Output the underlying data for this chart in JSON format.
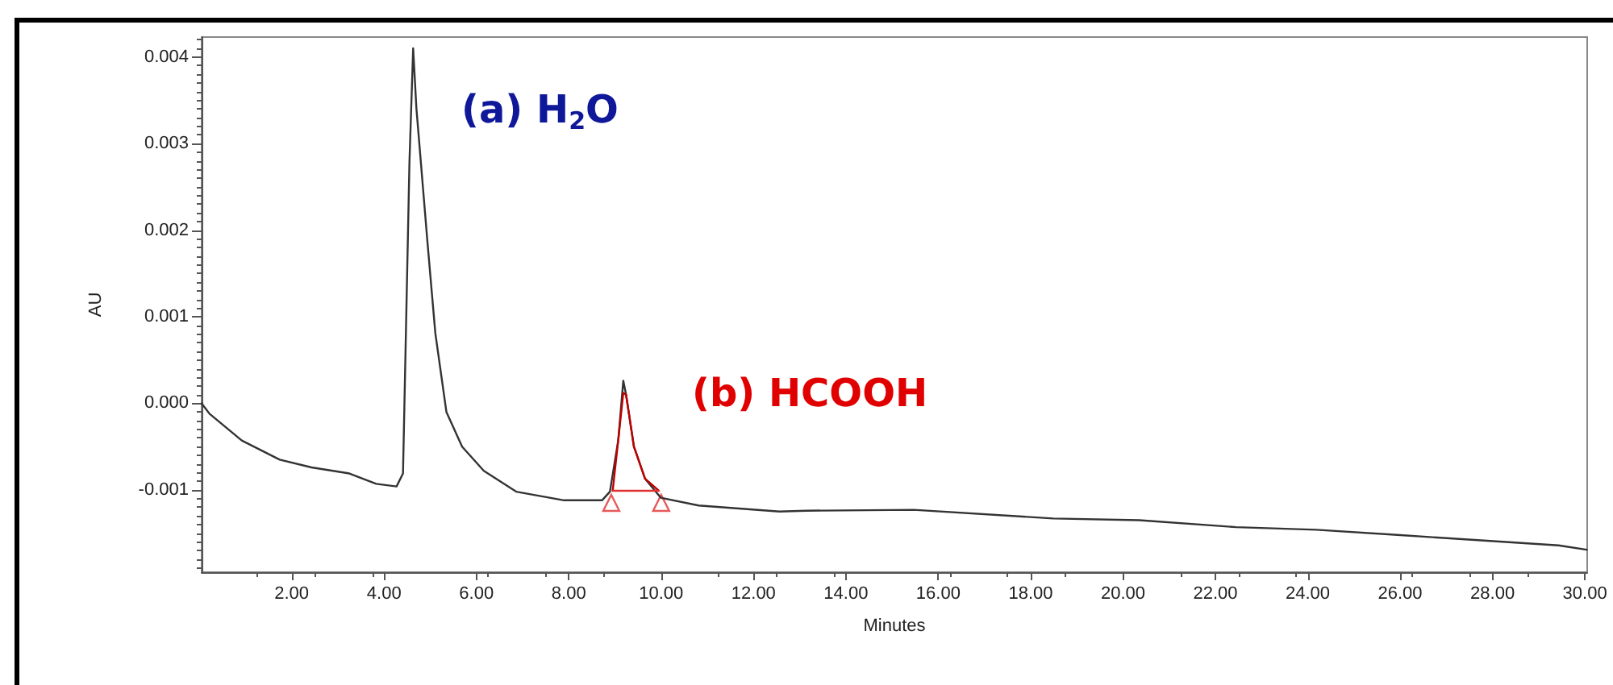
{
  "chart_data": {
    "type": "line",
    "xlabel": "Minutes",
    "ylabel": "AU",
    "xlim": [
      0.05,
      30.05
    ],
    "ylim": [
      -0.00195,
      0.00423
    ],
    "xticks": [
      {
        "value": 2,
        "label": "2.00"
      },
      {
        "value": 4,
        "label": "4.00"
      },
      {
        "value": 6,
        "label": "6.00"
      },
      {
        "value": 8,
        "label": "8.00"
      },
      {
        "value": 10,
        "label": "10.00"
      },
      {
        "value": 12,
        "label": "12.00"
      },
      {
        "value": 14,
        "label": "14.00"
      },
      {
        "value": 16,
        "label": "16.00"
      },
      {
        "value": 18,
        "label": "18.00"
      },
      {
        "value": 20,
        "label": "20.00"
      },
      {
        "value": 22,
        "label": "22.00"
      },
      {
        "value": 24,
        "label": "24.00"
      },
      {
        "value": 26,
        "label": "26.00"
      },
      {
        "value": 28,
        "label": "28.00"
      },
      {
        "value": 30,
        "label": "30.00"
      }
    ],
    "yticks": [
      -0.001,
      {
        "value": 0,
        "label": "0.000"
      },
      0.001,
      0.002,
      0.003,
      0.004
    ],
    "grid": false,
    "marker": "none",
    "line_style": "solid",
    "series": [
      {
        "color": "#333333",
        "x": [
          0.05,
          0.22,
          0.92,
          1.74,
          2.43,
          3.25,
          3.83,
          4.27,
          4.41,
          4.55,
          4.63,
          4.7,
          4.94,
          5.11,
          5.35,
          5.69,
          6.16,
          6.86,
          7.9,
          8.72,
          8.89,
          9.07,
          9.18,
          9.24,
          9.41,
          9.65,
          9.99,
          10.81,
          12.56,
          13.14,
          15.47,
          18.49,
          20.35,
          22.45,
          24.19,
          25.94,
          27.68,
          29.43,
          30.04
        ],
        "values": [
          0.0,
          -0.00012,
          -0.00043,
          -0.00065,
          -0.00074,
          -0.00081,
          -0.00093,
          -0.00096,
          -0.00081,
          0.00279,
          0.0041,
          0.00341,
          0.00186,
          0.00081,
          -0.0001,
          -0.0005,
          -0.00078,
          -0.00102,
          -0.00112,
          -0.00112,
          -0.00102,
          -0.00043,
          0.00026,
          0.0001,
          -0.0005,
          -0.00087,
          -0.00109,
          -0.00118,
          -0.00125,
          -0.00124,
          -0.00123,
          -0.00133,
          -0.00135,
          -0.00143,
          -0.00146,
          -0.00152,
          -0.00158,
          -0.00164,
          -0.00169
        ]
      },
      {
        "color": "#c00000",
        "x": [
          8.95,
          9.07,
          9.18,
          9.24,
          9.41,
          9.65,
          9.95
        ],
        "values": [
          -0.00101,
          -0.00043,
          0.00012,
          0.0001,
          -0.0005,
          -0.00087,
          -0.00101
        ]
      },
      {
        "color": "#e03030",
        "x": [
          8.95,
          9.95
        ],
        "values": [
          -0.00101,
          -0.00101
        ]
      },
      {
        "type": "scatter",
        "marker": "triangle",
        "color": "#e03030",
        "x": [
          8.92,
          10.0
        ],
        "values": [
          -0.00115,
          -0.00115
        ]
      }
    ],
    "annotations": [
      "(a) H$_{2}$O",
      "(b) HCOOH"
    ]
  }
}
